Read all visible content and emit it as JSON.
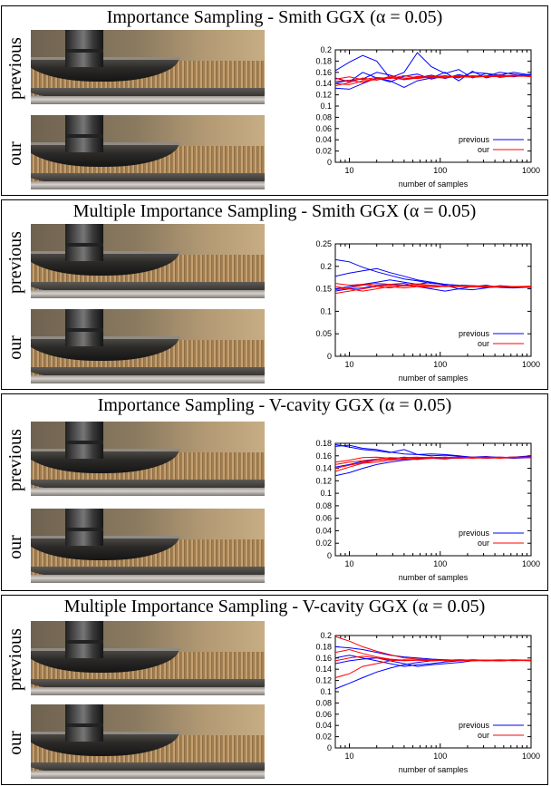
{
  "row_labels": {
    "previous": "previous",
    "ours": "our"
  },
  "colors": {
    "previous": "#0000ff",
    "ours": "#ff0000"
  },
  "panels": [
    {
      "title": "Importance Sampling - Smith GGX (α = 0.05)",
      "chart_data": {
        "type": "line",
        "xlabel": "number of samples",
        "ylabel": "",
        "x_scale": "log",
        "xlim": [
          7,
          1000
        ],
        "xticks": [
          10,
          100,
          1000
        ],
        "ylim": [
          0,
          0.2
        ],
        "yticks": [
          "0",
          "0.02",
          "0.04",
          "0.06",
          "0.08",
          "0.1",
          "0.12",
          "0.14",
          "0.16",
          "0.18",
          "0.2"
        ],
        "legend": {
          "placement": "bottom-right",
          "entries": [
            "previous",
            "our"
          ]
        },
        "x": [
          7,
          10,
          14,
          20,
          28,
          40,
          56,
          80,
          113,
          160,
          226,
          320,
          452,
          640,
          1000
        ],
        "series": [
          {
            "group": "previous",
            "values": [
              0.163,
              0.178,
              0.19,
              0.18,
              0.15,
              0.16,
              0.195,
              0.17,
              0.158,
              0.165,
              0.15,
              0.158,
              0.155,
              0.16,
              0.155
            ]
          },
          {
            "group": "previous",
            "values": [
              0.132,
              0.13,
              0.14,
              0.15,
              0.145,
              0.133,
              0.145,
              0.15,
              0.16,
              0.145,
              0.162,
              0.15,
              0.156,
              0.152,
              0.157
            ]
          },
          {
            "group": "previous",
            "values": [
              0.15,
              0.143,
              0.16,
              0.15,
              0.143,
              0.153,
              0.157,
              0.148,
              0.154,
              0.15,
              0.16,
              0.158,
              0.151,
              0.154,
              0.153
            ]
          },
          {
            "group": "previous",
            "values": [
              0.141,
              0.146,
              0.148,
              0.16,
              0.155,
              0.147,
              0.15,
              0.155,
              0.149,
              0.156,
              0.151,
              0.153,
              0.16,
              0.157,
              0.154
            ]
          },
          {
            "group": "ours",
            "values": [
              0.14,
              0.138,
              0.145,
              0.147,
              0.15,
              0.148,
              0.152,
              0.15,
              0.153,
              0.152,
              0.154,
              0.153,
              0.153,
              0.154,
              0.153
            ]
          },
          {
            "group": "ours",
            "values": [
              0.148,
              0.152,
              0.147,
              0.151,
              0.149,
              0.154,
              0.15,
              0.153,
              0.151,
              0.154,
              0.152,
              0.153,
              0.155,
              0.153,
              0.154
            ]
          },
          {
            "group": "ours",
            "values": [
              0.136,
              0.142,
              0.15,
              0.146,
              0.153,
              0.15,
              0.149,
              0.152,
              0.154,
              0.151,
              0.153,
              0.152,
              0.153,
              0.155,
              0.152
            ]
          },
          {
            "group": "ours",
            "values": [
              0.144,
              0.146,
              0.142,
              0.149,
              0.151,
              0.147,
              0.153,
              0.151,
              0.15,
              0.153,
              0.151,
              0.154,
              0.152,
              0.153,
              0.153
            ]
          }
        ]
      }
    },
    {
      "title": "Multiple Importance Sampling - Smith GGX (α = 0.05)",
      "chart_data": {
        "type": "line",
        "xlabel": "number of samples",
        "ylabel": "",
        "x_scale": "log",
        "xlim": [
          7,
          1000
        ],
        "xticks": [
          10,
          100,
          1000
        ],
        "ylim": [
          0,
          0.25
        ],
        "yticks": [
          "0",
          "0.05",
          "0.1",
          "0.15",
          "0.2",
          "0.25"
        ],
        "legend": {
          "placement": "bottom-right",
          "entries": [
            "previous",
            "our"
          ]
        },
        "x": [
          7,
          10,
          14,
          20,
          28,
          40,
          56,
          80,
          113,
          160,
          226,
          320,
          452,
          640,
          1000
        ],
        "series": [
          {
            "group": "previous",
            "values": [
              0.215,
              0.21,
              0.198,
              0.188,
              0.18,
              0.172,
              0.168,
              0.162,
              0.16,
              0.158,
              0.157,
              0.155,
              0.155,
              0.153,
              0.154
            ]
          },
          {
            "group": "previous",
            "values": [
              0.178,
              0.185,
              0.19,
              0.195,
              0.186,
              0.178,
              0.17,
              0.165,
              0.16,
              0.157,
              0.155,
              0.153,
              0.154,
              0.155,
              0.154
            ]
          },
          {
            "group": "previous",
            "values": [
              0.15,
              0.155,
              0.16,
              0.165,
              0.17,
              0.165,
              0.16,
              0.165,
              0.158,
              0.15,
              0.155,
              0.158,
              0.153,
              0.152,
              0.154
            ]
          },
          {
            "group": "previous",
            "values": [
              0.145,
              0.15,
              0.152,
              0.158,
              0.16,
              0.162,
              0.155,
              0.15,
              0.145,
              0.15,
              0.148,
              0.152,
              0.157,
              0.155,
              0.153
            ]
          },
          {
            "group": "ours",
            "values": [
              0.148,
              0.152,
              0.158,
              0.162,
              0.16,
              0.158,
              0.161,
              0.158,
              0.156,
              0.157,
              0.155,
              0.156,
              0.155,
              0.154,
              0.155
            ]
          },
          {
            "group": "ours",
            "values": [
              0.14,
              0.145,
              0.15,
              0.155,
              0.158,
              0.156,
              0.158,
              0.156,
              0.157,
              0.155,
              0.156,
              0.154,
              0.155,
              0.155,
              0.154
            ]
          },
          {
            "group": "ours",
            "values": [
              0.155,
              0.15,
              0.145,
              0.15,
              0.155,
              0.152,
              0.155,
              0.157,
              0.155,
              0.156,
              0.154,
              0.155,
              0.156,
              0.154,
              0.155
            ]
          },
          {
            "group": "ours",
            "values": [
              0.162,
              0.158,
              0.16,
              0.155,
              0.152,
              0.158,
              0.155,
              0.153,
              0.156,
              0.155,
              0.157,
              0.156,
              0.154,
              0.155,
              0.156
            ]
          }
        ]
      }
    },
    {
      "title": "Importance Sampling - V-cavity GGX (α = 0.05)",
      "chart_data": {
        "type": "line",
        "xlabel": "number of samples",
        "ylabel": "",
        "x_scale": "log",
        "xlim": [
          7,
          1000
        ],
        "xticks": [
          10,
          100,
          1000
        ],
        "ylim": [
          0,
          0.18
        ],
        "yticks": [
          "0",
          "0.02",
          "0.04",
          "0.06",
          "0.08",
          "0.1",
          "0.12",
          "0.14",
          "0.16",
          "0.18"
        ],
        "legend": {
          "placement": "bottom-right",
          "entries": [
            "previous",
            "our"
          ]
        },
        "x": [
          7,
          10,
          14,
          20,
          28,
          40,
          56,
          80,
          113,
          160,
          226,
          320,
          452,
          640,
          1000
        ],
        "series": [
          {
            "group": "previous",
            "values": [
              0.178,
              0.174,
              0.17,
              0.168,
              0.165,
              0.17,
              0.162,
              0.163,
              0.162,
              0.16,
              0.158,
              0.159,
              0.157,
              0.158,
              0.16
            ]
          },
          {
            "group": "previous",
            "values": [
              0.175,
              0.177,
              0.172,
              0.17,
              0.166,
              0.163,
              0.162,
              0.16,
              0.161,
              0.159,
              0.157,
              0.158,
              0.158,
              0.157,
              0.158
            ]
          },
          {
            "group": "previous",
            "values": [
              0.128,
              0.133,
              0.14,
              0.146,
              0.15,
              0.153,
              0.155,
              0.156,
              0.155,
              0.157,
              0.158,
              0.156,
              0.157,
              0.158,
              0.159
            ]
          },
          {
            "group": "previous",
            "values": [
              0.142,
              0.146,
              0.151,
              0.153,
              0.155,
              0.158,
              0.156,
              0.157,
              0.158,
              0.156,
              0.157,
              0.158,
              0.157,
              0.156,
              0.157
            ]
          },
          {
            "group": "ours",
            "values": [
              0.146,
              0.15,
              0.152,
              0.155,
              0.157,
              0.156,
              0.157,
              0.158,
              0.156,
              0.157,
              0.158,
              0.157,
              0.156,
              0.157,
              0.158
            ]
          },
          {
            "group": "ours",
            "values": [
              0.135,
              0.142,
              0.148,
              0.15,
              0.153,
              0.155,
              0.154,
              0.156,
              0.157,
              0.156,
              0.157,
              0.158,
              0.157,
              0.158,
              0.157
            ]
          },
          {
            "group": "ours",
            "values": [
              0.15,
              0.153,
              0.157,
              0.158,
              0.156,
              0.157,
              0.158,
              0.156,
              0.158,
              0.157,
              0.156,
              0.157,
              0.158,
              0.157,
              0.157
            ]
          },
          {
            "group": "ours",
            "values": [
              0.14,
              0.145,
              0.149,
              0.153,
              0.155,
              0.154,
              0.156,
              0.157,
              0.156,
              0.158,
              0.157,
              0.156,
              0.157,
              0.158,
              0.158
            ]
          }
        ]
      }
    },
    {
      "title": "Multiple Importance Sampling - V-cavity GGX (α = 0.05)",
      "chart_data": {
        "type": "line",
        "xlabel": "number of samples",
        "ylabel": "",
        "x_scale": "log",
        "xlim": [
          7,
          1000
        ],
        "xticks": [
          10,
          100,
          1000
        ],
        "ylim": [
          0,
          0.2
        ],
        "yticks": [
          "0",
          "0.02",
          "0.04",
          "0.06",
          "0.08",
          "0.1",
          "0.12",
          "0.14",
          "0.16",
          "0.18",
          "0.2"
        ],
        "legend": {
          "placement": "bottom-right",
          "entries": [
            "previous",
            "our"
          ]
        },
        "x": [
          7,
          10,
          14,
          20,
          28,
          40,
          56,
          80,
          113,
          160,
          226,
          320,
          452,
          640,
          1000
        ],
        "series": [
          {
            "group": "previous",
            "values": [
              0.105,
              0.115,
              0.125,
              0.135,
              0.142,
              0.148,
              0.152,
              0.155,
              0.156,
              0.155,
              0.157,
              0.156,
              0.155,
              0.156,
              0.156
            ]
          },
          {
            "group": "previous",
            "values": [
              0.18,
              0.178,
              0.175,
              0.17,
              0.165,
              0.162,
              0.16,
              0.158,
              0.157,
              0.156,
              0.155,
              0.156,
              0.155,
              0.156,
              0.155
            ]
          },
          {
            "group": "previous",
            "values": [
              0.16,
              0.165,
              0.16,
              0.155,
              0.15,
              0.145,
              0.148,
              0.15,
              0.153,
              0.155,
              0.156,
              0.155,
              0.156,
              0.157,
              0.156
            ]
          },
          {
            "group": "previous",
            "values": [
              0.15,
              0.155,
              0.158,
              0.16,
              0.155,
              0.15,
              0.145,
              0.148,
              0.15,
              0.152,
              0.155,
              0.156,
              0.155,
              0.156,
              0.156
            ]
          },
          {
            "group": "ours",
            "values": [
              0.198,
              0.19,
              0.18,
              0.172,
              0.166,
              0.16,
              0.158,
              0.157,
              0.156,
              0.157,
              0.156,
              0.155,
              0.156,
              0.156,
              0.156
            ]
          },
          {
            "group": "ours",
            "values": [
              0.125,
              0.132,
              0.145,
              0.15,
              0.155,
              0.157,
              0.156,
              0.155,
              0.157,
              0.156,
              0.155,
              0.156,
              0.157,
              0.156,
              0.156
            ]
          },
          {
            "group": "ours",
            "values": [
              0.17,
              0.175,
              0.168,
              0.162,
              0.158,
              0.156,
              0.157,
              0.155,
              0.156,
              0.157,
              0.156,
              0.155,
              0.156,
              0.155,
              0.156
            ]
          },
          {
            "group": "ours",
            "values": [
              0.155,
              0.16,
              0.163,
              0.16,
              0.157,
              0.155,
              0.156,
              0.157,
              0.155,
              0.156,
              0.157,
              0.156,
              0.155,
              0.156,
              0.156
            ]
          }
        ]
      }
    }
  ]
}
